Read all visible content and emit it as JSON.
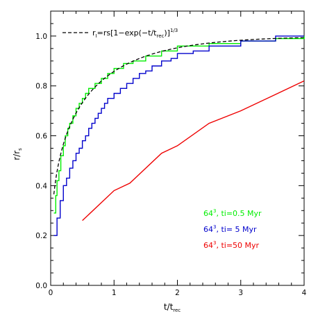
{
  "chart_data": {
    "type": "line",
    "xlabel": {
      "main": "t/t",
      "sub": "rec"
    },
    "ylabel": {
      "main": "r/r",
      "sub": "s"
    },
    "xlim": [
      0,
      4
    ],
    "ylim": [
      0,
      1.1
    ],
    "xticks": [
      "0",
      "1",
      "2",
      "3",
      "4"
    ],
    "yticks": [
      "0.0",
      "0.2",
      "0.4",
      "0.6",
      "0.8",
      "1.0"
    ],
    "grid": false,
    "legend_top": {
      "label_parts": {
        "r": "r",
        "r_sub": "I",
        "eq": "=rs[1−exp(−t/t",
        "t_sub": "rec",
        "close": ")]",
        "exp": "1/3"
      },
      "placement": "top-left"
    },
    "legend_series": {
      "placement": "bottom-right"
    },
    "series": [
      {
        "name": "64³, ti=0.5 Myr",
        "name_parts": {
          "base": "64",
          "sup": "3",
          "rest": ", ti=0.5 Myr"
        },
        "color": "#00ee00",
        "style": "step",
        "points": [
          [
            0.05,
            0.29
          ],
          [
            0.08,
            0.36
          ],
          [
            0.1,
            0.42
          ],
          [
            0.13,
            0.46
          ],
          [
            0.16,
            0.52
          ],
          [
            0.2,
            0.56
          ],
          [
            0.23,
            0.6
          ],
          [
            0.27,
            0.63
          ],
          [
            0.3,
            0.65
          ],
          [
            0.35,
            0.68
          ],
          [
            0.4,
            0.71
          ],
          [
            0.45,
            0.73
          ],
          [
            0.5,
            0.75
          ],
          [
            0.55,
            0.77
          ],
          [
            0.6,
            0.79
          ],
          [
            0.7,
            0.81
          ],
          [
            0.8,
            0.83
          ],
          [
            0.9,
            0.85
          ],
          [
            1.0,
            0.87
          ],
          [
            1.15,
            0.89
          ],
          [
            1.3,
            0.9
          ],
          [
            1.5,
            0.92
          ],
          [
            1.75,
            0.94
          ],
          [
            2.0,
            0.96
          ],
          [
            2.5,
            0.97
          ],
          [
            3.0,
            0.98
          ],
          [
            3.55,
            0.99
          ],
          [
            4.0,
            1.0
          ]
        ]
      },
      {
        "name": "64³, ti= 5 Myr",
        "name_parts": {
          "base": "64",
          "sup": "3",
          "rest": ", ti= 5 Myr"
        },
        "color": "#0000cc",
        "style": "step",
        "points": [
          [
            0.05,
            0.2
          ],
          [
            0.1,
            0.27
          ],
          [
            0.15,
            0.34
          ],
          [
            0.2,
            0.4
          ],
          [
            0.25,
            0.43
          ],
          [
            0.3,
            0.47
          ],
          [
            0.35,
            0.5
          ],
          [
            0.4,
            0.53
          ],
          [
            0.45,
            0.55
          ],
          [
            0.5,
            0.58
          ],
          [
            0.55,
            0.6
          ],
          [
            0.6,
            0.63
          ],
          [
            0.65,
            0.65
          ],
          [
            0.7,
            0.67
          ],
          [
            0.75,
            0.69
          ],
          [
            0.8,
            0.71
          ],
          [
            0.85,
            0.73
          ],
          [
            0.9,
            0.75
          ],
          [
            1.0,
            0.77
          ],
          [
            1.1,
            0.79
          ],
          [
            1.2,
            0.81
          ],
          [
            1.3,
            0.83
          ],
          [
            1.4,
            0.85
          ],
          [
            1.5,
            0.86
          ],
          [
            1.6,
            0.88
          ],
          [
            1.75,
            0.9
          ],
          [
            1.9,
            0.91
          ],
          [
            2.0,
            0.93
          ],
          [
            2.25,
            0.94
          ],
          [
            2.5,
            0.96
          ],
          [
            3.0,
            0.98
          ],
          [
            3.55,
            1.0
          ],
          [
            4.0,
            1.0
          ]
        ]
      },
      {
        "name": "64³, ti=50 Myr",
        "name_parts": {
          "base": "64",
          "sup": "3",
          "rest": ", ti=50 Myr"
        },
        "color": "#ee0000",
        "style": "line",
        "points": [
          [
            0.5,
            0.26
          ],
          [
            1.0,
            0.38
          ],
          [
            1.25,
            0.41
          ],
          [
            1.75,
            0.53
          ],
          [
            2.0,
            0.56
          ],
          [
            2.5,
            0.65
          ],
          [
            3.0,
            0.7
          ],
          [
            3.5,
            0.76
          ],
          [
            4.0,
            0.82
          ]
        ]
      },
      {
        "name": "r_I analytic",
        "color": "#000000",
        "style": "dashed",
        "formula": "1 - exp(-t)",
        "exponent": 0.3333,
        "x_start": 0.05,
        "x_end": 4.0
      }
    ]
  }
}
